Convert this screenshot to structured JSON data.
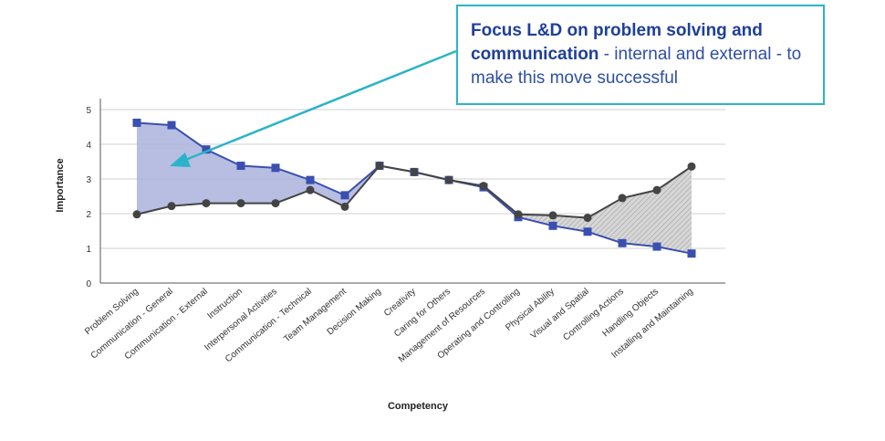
{
  "chart_data": {
    "type": "line",
    "xlabel": "Competency",
    "ylabel": "Importance",
    "ylim": [
      0,
      5
    ],
    "yticks": [
      0,
      1,
      2,
      3,
      4,
      5
    ],
    "grid": "horizontal",
    "categories": [
      "Problem Solving",
      "Communication - General",
      "Communication - External",
      "Instruction",
      "Interpersonal Activities",
      "Communication - Technical",
      "Team Management",
      "Decision Making",
      "Creativity",
      "Caring for Others",
      "Management of Resources",
      "Operating and Controlling",
      "Physical Ability",
      "Visual and Spatial",
      "Controlling Actions",
      "Handling Objects",
      "Installing and Maintaining"
    ],
    "series": [
      {
        "marker": "square",
        "color": "#3a4fb0",
        "values": [
          4.62,
          4.55,
          3.85,
          3.38,
          3.32,
          2.97,
          2.53,
          3.38,
          3.2,
          2.97,
          2.76,
          1.9,
          1.65,
          1.48,
          1.15,
          1.05,
          0.85
        ]
      },
      {
        "marker": "circle",
        "color": "#444444",
        "values": [
          1.98,
          2.22,
          2.3,
          2.3,
          2.3,
          2.68,
          2.2,
          3.38,
          3.2,
          2.97,
          2.8,
          1.98,
          1.95,
          1.88,
          2.45,
          2.68,
          3.36
        ]
      }
    ],
    "fills": {
      "blue_above": "#aab3dd",
      "grey_below": "#cfcfcf"
    }
  },
  "callout": {
    "bold_text": "Focus L&D on problem solving and communication",
    "rest_text": " - internal and external - to make this move successful",
    "border_color": "#2bb3c9",
    "arrow_color": "#2bb3c9"
  }
}
